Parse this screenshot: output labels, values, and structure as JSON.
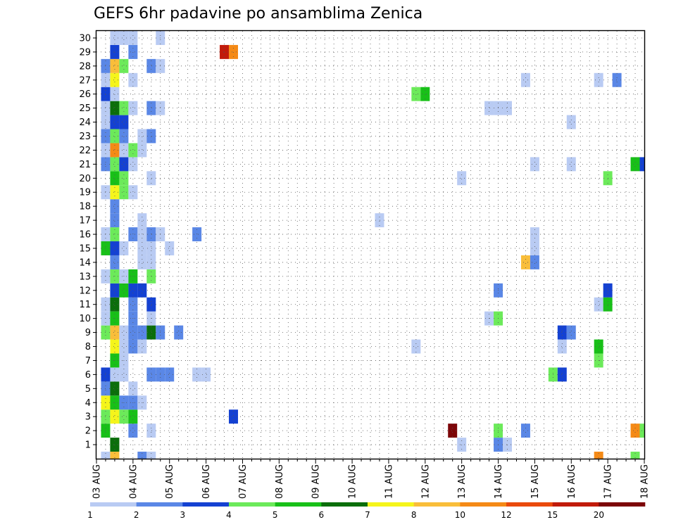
{
  "title": "GEFS 6hr padavine po ansamblima Zenica",
  "chart_data": {
    "type": "heatmap",
    "title": "GEFS 6hr padavine po ansamblima Zenica",
    "xlabel": "",
    "ylabel": "",
    "x_tick_labels": [
      "03 AUG",
      "04 AUG",
      "05 AUG",
      "06 AUG",
      "07 AUG",
      "08 AUG",
      "09 AUG",
      "10 AUG",
      "11 AUG",
      "12 AUG",
      "13 AUG",
      "14 AUG",
      "15 AUG",
      "16 AUG",
      "17 AUG",
      "18 AUG"
    ],
    "y_tick_labels": [
      "1",
      "2",
      "3",
      "4",
      "5",
      "6",
      "7",
      "8",
      "9",
      "10",
      "11",
      "12",
      "13",
      "14",
      "15",
      "16",
      "17",
      "18",
      "19",
      "20",
      "21",
      "22",
      "23",
      "24",
      "25",
      "26",
      "27",
      "28",
      "29",
      "30"
    ],
    "time_steps": 60,
    "steps_per_day": 4,
    "members": 31,
    "xlim": [
      "03 AUG",
      "18 AUG"
    ],
    "ylim": [
      0,
      30
    ],
    "grid": true,
    "colorbar": {
      "levels": [
        "1",
        "2",
        "3",
        "4",
        "5",
        "6",
        "7",
        "8",
        "10",
        "12",
        "15",
        "20"
      ],
      "colors": [
        "#b9cbf3",
        "#5a87e6",
        "#1441d2",
        "#6cea5a",
        "#18c018",
        "#0b6e0b",
        "#f5f51b",
        "#f9be3a",
        "#f58a16",
        "#ea4a0c",
        "#c11b0b",
        "#7c0508"
      ]
    },
    "cells": [
      {
        "m": 0,
        "t": 1,
        "c": "#b9cbf3"
      },
      {
        "m": 0,
        "t": 2,
        "c": "#f9be3a"
      },
      {
        "m": 0,
        "t": 5,
        "c": "#5a87e6"
      },
      {
        "m": 0,
        "t": 6,
        "c": "#b9cbf3"
      },
      {
        "m": 0,
        "t": 55,
        "c": "#f58a16"
      },
      {
        "m": 0,
        "t": 59,
        "c": "#6cea5a"
      },
      {
        "m": 1,
        "t": 2,
        "c": "#0b6e0b"
      },
      {
        "m": 1,
        "t": 40,
        "c": "#b9cbf3"
      },
      {
        "m": 1,
        "t": 44,
        "c": "#5a87e6"
      },
      {
        "m": 1,
        "t": 45,
        "c": "#b9cbf3"
      },
      {
        "m": 2,
        "t": 1,
        "c": "#18c018"
      },
      {
        "m": 2,
        "t": 4,
        "c": "#5a87e6"
      },
      {
        "m": 2,
        "t": 6,
        "c": "#b9cbf3"
      },
      {
        "m": 2,
        "t": 39,
        "c": "#7c0508"
      },
      {
        "m": 2,
        "t": 44,
        "c": "#6cea5a"
      },
      {
        "m": 2,
        "t": 47,
        "c": "#5a87e6"
      },
      {
        "m": 2,
        "t": 59,
        "c": "#f58a16"
      },
      {
        "m": 2,
        "t": 60,
        "c": "#6cea5a"
      },
      {
        "m": 3,
        "t": 1,
        "c": "#6cea5a"
      },
      {
        "m": 3,
        "t": 2,
        "c": "#f5f51b"
      },
      {
        "m": 3,
        "t": 3,
        "c": "#6cea5a"
      },
      {
        "m": 3,
        "t": 4,
        "c": "#18c018"
      },
      {
        "m": 3,
        "t": 15,
        "c": "#1441d2"
      },
      {
        "m": 4,
        "t": 1,
        "c": "#f5f51b"
      },
      {
        "m": 4,
        "t": 2,
        "c": "#18c018"
      },
      {
        "m": 4,
        "t": 3,
        "c": "#5a87e6"
      },
      {
        "m": 4,
        "t": 4,
        "c": "#5a87e6"
      },
      {
        "m": 4,
        "t": 5,
        "c": "#b9cbf3"
      },
      {
        "m": 5,
        "t": 1,
        "c": "#5a87e6"
      },
      {
        "m": 5,
        "t": 2,
        "c": "#0b6e0b"
      },
      {
        "m": 5,
        "t": 4,
        "c": "#b9cbf3"
      },
      {
        "m": 6,
        "t": 1,
        "c": "#1441d2"
      },
      {
        "m": 6,
        "t": 2,
        "c": "#b9cbf3"
      },
      {
        "m": 6,
        "t": 3,
        "c": "#b9cbf3"
      },
      {
        "m": 6,
        "t": 6,
        "c": "#5a87e6"
      },
      {
        "m": 6,
        "t": 7,
        "c": "#5a87e6"
      },
      {
        "m": 6,
        "t": 8,
        "c": "#5a87e6"
      },
      {
        "m": 6,
        "t": 11,
        "c": "#b9cbf3"
      },
      {
        "m": 6,
        "t": 12,
        "c": "#b9cbf3"
      },
      {
        "m": 6,
        "t": 50,
        "c": "#6cea5a"
      },
      {
        "m": 6,
        "t": 51,
        "c": "#1441d2"
      },
      {
        "m": 7,
        "t": 2,
        "c": "#18c018"
      },
      {
        "m": 7,
        "t": 3,
        "c": "#b9cbf3"
      },
      {
        "m": 7,
        "t": 55,
        "c": "#6cea5a"
      },
      {
        "m": 8,
        "t": 2,
        "c": "#f5f51b"
      },
      {
        "m": 8,
        "t": 3,
        "c": "#b9cbf3"
      },
      {
        "m": 8,
        "t": 4,
        "c": "#5a87e6"
      },
      {
        "m": 8,
        "t": 5,
        "c": "#b9cbf3"
      },
      {
        "m": 8,
        "t": 35,
        "c": "#b9cbf3"
      },
      {
        "m": 8,
        "t": 51,
        "c": "#b9cbf3"
      },
      {
        "m": 8,
        "t": 55,
        "c": "#18c018"
      },
      {
        "m": 9,
        "t": 1,
        "c": "#6cea5a"
      },
      {
        "m": 9,
        "t": 2,
        "c": "#f9be3a"
      },
      {
        "m": 9,
        "t": 3,
        "c": "#b9cbf3"
      },
      {
        "m": 9,
        "t": 4,
        "c": "#5a87e6"
      },
      {
        "m": 9,
        "t": 5,
        "c": "#5a87e6"
      },
      {
        "m": 9,
        "t": 6,
        "c": "#0b6e0b"
      },
      {
        "m": 9,
        "t": 7,
        "c": "#5a87e6"
      },
      {
        "m": 9,
        "t": 9,
        "c": "#5a87e6"
      },
      {
        "m": 9,
        "t": 51,
        "c": "#1441d2"
      },
      {
        "m": 9,
        "t": 52,
        "c": "#5a87e6"
      },
      {
        "m": 10,
        "t": 1,
        "c": "#b9cbf3"
      },
      {
        "m": 10,
        "t": 2,
        "c": "#18c018"
      },
      {
        "m": 10,
        "t": 4,
        "c": "#5a87e6"
      },
      {
        "m": 10,
        "t": 6,
        "c": "#b9cbf3"
      },
      {
        "m": 10,
        "t": 43,
        "c": "#b9cbf3"
      },
      {
        "m": 10,
        "t": 44,
        "c": "#6cea5a"
      },
      {
        "m": 11,
        "t": 1,
        "c": "#b9cbf3"
      },
      {
        "m": 11,
        "t": 2,
        "c": "#0b6e0b"
      },
      {
        "m": 11,
        "t": 4,
        "c": "#5a87e6"
      },
      {
        "m": 11,
        "t": 6,
        "c": "#1441d2"
      },
      {
        "m": 11,
        "t": 55,
        "c": "#b9cbf3"
      },
      {
        "m": 11,
        "t": 56,
        "c": "#18c018"
      },
      {
        "m": 12,
        "t": 2,
        "c": "#1441d2"
      },
      {
        "m": 12,
        "t": 3,
        "c": "#18c018"
      },
      {
        "m": 12,
        "t": 4,
        "c": "#1441d2"
      },
      {
        "m": 12,
        "t": 5,
        "c": "#1441d2"
      },
      {
        "m": 12,
        "t": 44,
        "c": "#5a87e6"
      },
      {
        "m": 12,
        "t": 56,
        "c": "#1441d2"
      },
      {
        "m": 13,
        "t": 1,
        "c": "#b9cbf3"
      },
      {
        "m": 13,
        "t": 2,
        "c": "#6cea5a"
      },
      {
        "m": 13,
        "t": 3,
        "c": "#b9cbf3"
      },
      {
        "m": 13,
        "t": 4,
        "c": "#18c018"
      },
      {
        "m": 13,
        "t": 6,
        "c": "#6cea5a"
      },
      {
        "m": 14,
        "t": 2,
        "c": "#5a87e6"
      },
      {
        "m": 14,
        "t": 5,
        "c": "#b9cbf3"
      },
      {
        "m": 14,
        "t": 6,
        "c": "#b9cbf3"
      },
      {
        "m": 14,
        "t": 47,
        "c": "#f9be3a"
      },
      {
        "m": 14,
        "t": 48,
        "c": "#5a87e6"
      },
      {
        "m": 15,
        "t": 1,
        "c": "#18c018"
      },
      {
        "m": 15,
        "t": 2,
        "c": "#1441d2"
      },
      {
        "m": 15,
        "t": 3,
        "c": "#b9cbf3"
      },
      {
        "m": 15,
        "t": 5,
        "c": "#b9cbf3"
      },
      {
        "m": 15,
        "t": 6,
        "c": "#b9cbf3"
      },
      {
        "m": 15,
        "t": 8,
        "c": "#b9cbf3"
      },
      {
        "m": 15,
        "t": 48,
        "c": "#b9cbf3"
      },
      {
        "m": 16,
        "t": 1,
        "c": "#b9cbf3"
      },
      {
        "m": 16,
        "t": 2,
        "c": "#6cea5a"
      },
      {
        "m": 16,
        "t": 4,
        "c": "#5a87e6"
      },
      {
        "m": 16,
        "t": 5,
        "c": "#b9cbf3"
      },
      {
        "m": 16,
        "t": 6,
        "c": "#5a87e6"
      },
      {
        "m": 16,
        "t": 7,
        "c": "#b9cbf3"
      },
      {
        "m": 16,
        "t": 11,
        "c": "#5a87e6"
      },
      {
        "m": 16,
        "t": 48,
        "c": "#b9cbf3"
      },
      {
        "m": 17,
        "t": 2,
        "c": "#5a87e6"
      },
      {
        "m": 17,
        "t": 5,
        "c": "#b9cbf3"
      },
      {
        "m": 17,
        "t": 31,
        "c": "#b9cbf3"
      },
      {
        "m": 18,
        "t": 2,
        "c": "#5a87e6"
      },
      {
        "m": 19,
        "t": 1,
        "c": "#b9cbf3"
      },
      {
        "m": 19,
        "t": 2,
        "c": "#f5f51b"
      },
      {
        "m": 19,
        "t": 3,
        "c": "#6cea5a"
      },
      {
        "m": 19,
        "t": 4,
        "c": "#b9cbf3"
      },
      {
        "m": 20,
        "t": 2,
        "c": "#18c018"
      },
      {
        "m": 20,
        "t": 3,
        "c": "#6cea5a"
      },
      {
        "m": 20,
        "t": 6,
        "c": "#b9cbf3"
      },
      {
        "m": 20,
        "t": 40,
        "c": "#b9cbf3"
      },
      {
        "m": 20,
        "t": 56,
        "c": "#6cea5a"
      },
      {
        "m": 21,
        "t": 1,
        "c": "#5a87e6"
      },
      {
        "m": 21,
        "t": 2,
        "c": "#6cea5a"
      },
      {
        "m": 21,
        "t": 3,
        "c": "#1441d2"
      },
      {
        "m": 21,
        "t": 4,
        "c": "#b9cbf3"
      },
      {
        "m": 21,
        "t": 48,
        "c": "#b9cbf3"
      },
      {
        "m": 21,
        "t": 52,
        "c": "#b9cbf3"
      },
      {
        "m": 21,
        "t": 59,
        "c": "#18c018"
      },
      {
        "m": 21,
        "t": 60,
        "c": "#1441d2"
      },
      {
        "m": 22,
        "t": 1,
        "c": "#b9cbf3"
      },
      {
        "m": 22,
        "t": 2,
        "c": "#f58a16"
      },
      {
        "m": 22,
        "t": 3,
        "c": "#b9cbf3"
      },
      {
        "m": 22,
        "t": 4,
        "c": "#6cea5a"
      },
      {
        "m": 22,
        "t": 5,
        "c": "#b9cbf3"
      },
      {
        "m": 23,
        "t": 1,
        "c": "#5a87e6"
      },
      {
        "m": 23,
        "t": 2,
        "c": "#6cea5a"
      },
      {
        "m": 23,
        "t": 3,
        "c": "#5a87e6"
      },
      {
        "m": 23,
        "t": 5,
        "c": "#b9cbf3"
      },
      {
        "m": 23,
        "t": 6,
        "c": "#5a87e6"
      },
      {
        "m": 24,
        "t": 1,
        "c": "#b9cbf3"
      },
      {
        "m": 24,
        "t": 2,
        "c": "#1441d2"
      },
      {
        "m": 24,
        "t": 3,
        "c": "#1441d2"
      },
      {
        "m": 24,
        "t": 52,
        "c": "#b9cbf3"
      },
      {
        "m": 25,
        "t": 1,
        "c": "#b9cbf3"
      },
      {
        "m": 25,
        "t": 2,
        "c": "#0b6e0b"
      },
      {
        "m": 25,
        "t": 3,
        "c": "#6cea5a"
      },
      {
        "m": 25,
        "t": 4,
        "c": "#b9cbf3"
      },
      {
        "m": 25,
        "t": 6,
        "c": "#5a87e6"
      },
      {
        "m": 25,
        "t": 7,
        "c": "#b9cbf3"
      },
      {
        "m": 25,
        "t": 43,
        "c": "#b9cbf3"
      },
      {
        "m": 25,
        "t": 44,
        "c": "#b9cbf3"
      },
      {
        "m": 25,
        "t": 45,
        "c": "#b9cbf3"
      },
      {
        "m": 26,
        "t": 1,
        "c": "#1441d2"
      },
      {
        "m": 26,
        "t": 2,
        "c": "#b9cbf3"
      },
      {
        "m": 26,
        "t": 35,
        "c": "#6cea5a"
      },
      {
        "m": 26,
        "t": 36,
        "c": "#18c018"
      },
      {
        "m": 27,
        "t": 1,
        "c": "#b9cbf3"
      },
      {
        "m": 27,
        "t": 2,
        "c": "#f5f51b"
      },
      {
        "m": 27,
        "t": 4,
        "c": "#b9cbf3"
      },
      {
        "m": 27,
        "t": 47,
        "c": "#b9cbf3"
      },
      {
        "m": 27,
        "t": 55,
        "c": "#b9cbf3"
      },
      {
        "m": 27,
        "t": 57,
        "c": "#5a87e6"
      },
      {
        "m": 28,
        "t": 1,
        "c": "#5a87e6"
      },
      {
        "m": 28,
        "t": 2,
        "c": "#f9be3a"
      },
      {
        "m": 28,
        "t": 3,
        "c": "#6cea5a"
      },
      {
        "m": 28,
        "t": 6,
        "c": "#5a87e6"
      },
      {
        "m": 28,
        "t": 7,
        "c": "#b9cbf3"
      },
      {
        "m": 29,
        "t": 2,
        "c": "#1441d2"
      },
      {
        "m": 29,
        "t": 4,
        "c": "#5a87e6"
      },
      {
        "m": 29,
        "t": 14,
        "c": "#c11b0b"
      },
      {
        "m": 29,
        "t": 15,
        "c": "#f58a16"
      },
      {
        "m": 30,
        "t": 2,
        "c": "#b9cbf3"
      },
      {
        "m": 30,
        "t": 3,
        "c": "#b9cbf3"
      },
      {
        "m": 30,
        "t": 4,
        "c": "#b9cbf3"
      },
      {
        "m": 30,
        "t": 7,
        "c": "#b9cbf3"
      }
    ]
  }
}
